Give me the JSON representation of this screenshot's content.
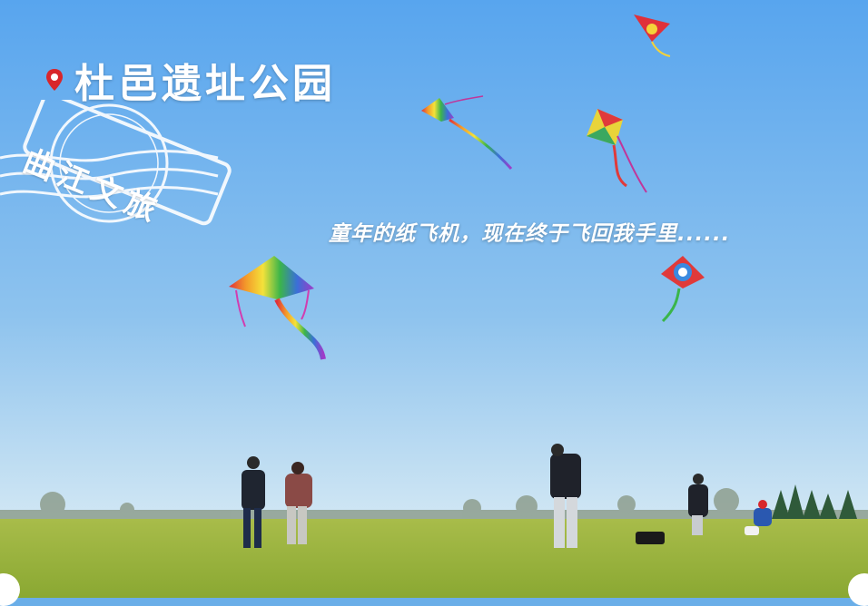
{
  "location": {
    "title": "杜邑遗址公园",
    "icon": "map-pin-icon",
    "pin_color": "#d8262b"
  },
  "stamp": {
    "text": "曲江文旅"
  },
  "caption": "童年的纸飞机，现在终于飞回我手里......",
  "colors": {
    "sky_top": "#5aa6ee",
    "sky_bottom": "#cfe6f5",
    "grass": "#9ab43a"
  }
}
